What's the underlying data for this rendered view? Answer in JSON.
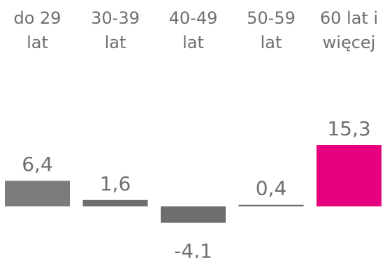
{
  "chart_data": {
    "type": "bar",
    "categories": [
      [
        "do 29",
        "lat"
      ],
      [
        "30-39",
        "lat"
      ],
      [
        "40-49",
        "lat"
      ],
      [
        "50-59",
        "lat"
      ],
      [
        "60 lat i",
        "więcej"
      ]
    ],
    "values": [
      6.4,
      1.6,
      -4.1,
      0.4,
      15.3
    ],
    "value_labels": [
      "6,4",
      "1,6",
      "-4,1",
      "0,4",
      "15,3"
    ],
    "bar_colors": [
      "#7b7b7b",
      "#6e6e6e",
      "#6e6e6e",
      "#6e6e6e",
      "#e6007e"
    ],
    "ylim": [
      -4.1,
      15.3
    ],
    "grid": false,
    "legend": "none",
    "title": "",
    "xlabel": "",
    "ylabel": ""
  }
}
